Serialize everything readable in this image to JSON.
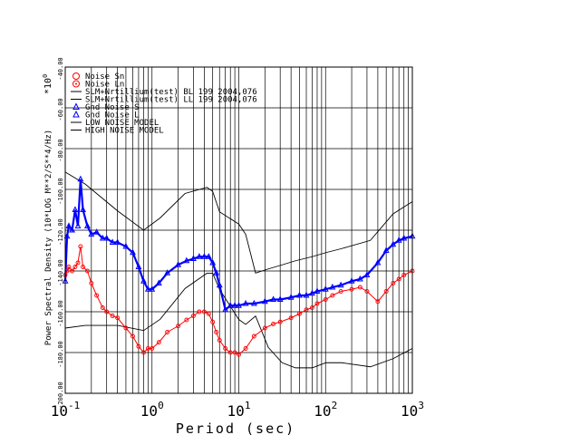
{
  "chart_data": {
    "type": "scatter",
    "xlabel": "Period (sec)",
    "ylabel": "Power Spectral Density (10*LOG M**2/S**4/Hz)",
    "y_multiplier": "*10",
    "y_multiplier_exp": "0",
    "xscale": "log",
    "xlim": [
      0.1,
      1000
    ],
    "ylim": [
      -200,
      -40
    ],
    "grid": true,
    "legend_position": "top-left",
    "x_ticks": [
      {
        "base": "10",
        "exp": "-1",
        "value": 0.1
      },
      {
        "base": "10",
        "exp": "0",
        "value": 1
      },
      {
        "base": "10",
        "exp": "1",
        "value": 10
      },
      {
        "base": "10",
        "exp": "2",
        "value": 100
      },
      {
        "base": "10",
        "exp": "3",
        "value": 1000
      }
    ],
    "y_ticks": [
      {
        "label": "-200.00",
        "value": -200
      },
      {
        "label": "-180.00",
        "value": -180
      },
      {
        "label": "-160.00",
        "value": -160
      },
      {
        "label": "-140.00",
        "value": -140
      },
      {
        "label": "-120.00",
        "value": -120
      },
      {
        "label": "-100.00",
        "value": -100
      },
      {
        "label": "-80.00",
        "value": -80
      },
      {
        "label": "-60.00",
        "value": -60
      },
      {
        "label": "-40.00",
        "value": -40
      }
    ],
    "legend": [
      {
        "symbol": "circle",
        "color": "#ff0000",
        "label": "Noise Sn"
      },
      {
        "symbol": "circle-dot",
        "color": "#ff0000",
        "label": "Noise Ln"
      },
      {
        "symbol": "line",
        "color": "#000000",
        "label": "SLM+Nrtillium(test) BL 199 2004,076"
      },
      {
        "symbol": "line",
        "color": "#000000",
        "label": "SLM+Nrtillium(test) LL 199 2004,076"
      },
      {
        "symbol": "triangle",
        "color": "#0000ff",
        "label": "Gnd Noise S"
      },
      {
        "symbol": "triangle",
        "color": "#0000ff",
        "label": "Gnd Noise L"
      },
      {
        "symbol": "line",
        "color": "#000000",
        "label": "LOW NOISE MODEL"
      },
      {
        "symbol": "line",
        "color": "#000000",
        "label": "HIGH NOISE MODEL"
      }
    ],
    "series": [
      {
        "name": "Gnd Noise S",
        "color": "#0000ff",
        "marker": "triangle",
        "x": [
          0.1,
          0.105,
          0.11,
          0.12,
          0.13,
          0.14,
          0.15,
          0.16,
          0.18,
          0.2,
          0.23,
          0.27,
          0.3,
          0.35,
          0.4,
          0.5,
          0.6,
          0.7,
          0.8,
          0.9,
          1.0,
          1.2,
          1.5,
          2.0,
          2.5,
          3.0,
          3.5,
          4.0,
          4.5,
          5.0,
          5.5,
          6.0,
          7.0,
          8.0,
          9.0,
          10,
          12,
          15,
          20,
          25,
          30,
          40,
          50,
          60,
          70,
          80,
          100,
          120,
          150,
          200,
          250,
          300,
          400,
          500,
          600,
          700,
          800,
          1000
        ],
        "y": [
          -145,
          -123,
          -118,
          -120,
          -110,
          -118,
          -95,
          -110,
          -118,
          -122,
          -121,
          -124,
          -124,
          -126,
          -126,
          -128,
          -131,
          -138,
          -145,
          -149,
          -149,
          -146,
          -141,
          -137,
          -135,
          -134,
          -133,
          -133,
          -133,
          -136,
          -141,
          -147,
          -159,
          -157,
          -157,
          -157,
          -156,
          -156,
          -155,
          -154,
          -154,
          -153,
          -152,
          -152,
          -151,
          -150,
          -149,
          -148,
          -147,
          -145,
          -144,
          -142,
          -136,
          -130,
          -127,
          -125,
          -124,
          -123
        ]
      },
      {
        "name": "Noise Sn",
        "color": "#ff0000",
        "marker": "circle",
        "x": [
          0.1,
          0.105,
          0.11,
          0.12,
          0.13,
          0.14,
          0.15,
          0.16,
          0.18,
          0.2,
          0.23,
          0.27,
          0.3,
          0.35,
          0.4,
          0.5,
          0.6,
          0.7,
          0.8,
          0.9,
          1.0,
          1.2,
          1.5,
          2.0,
          2.5,
          3.0,
          3.5,
          4.0,
          4.5,
          5.0,
          5.5,
          6.0,
          7.0,
          8.0,
          9.0,
          10,
          12,
          15,
          20,
          25,
          30,
          40,
          50,
          60,
          70,
          80,
          100,
          120,
          150,
          200,
          250,
          300,
          400,
          500,
          600,
          700,
          800,
          1000
        ],
        "y": [
          -142,
          -140,
          -138,
          -140,
          -138,
          -136,
          -128,
          -138,
          -140,
          -146,
          -152,
          -158,
          -160,
          -162,
          -163,
          -168,
          -172,
          -177,
          -180,
          -178,
          -178,
          -175,
          -170,
          -167,
          -164,
          -162,
          -160,
          -160,
          -161,
          -165,
          -170,
          -174,
          -178,
          -180,
          -180,
          -181,
          -178,
          -172,
          -168,
          -166,
          -165,
          -163,
          -161,
          -159,
          -158,
          -156,
          -154,
          -152,
          -150,
          -149,
          -148,
          -150,
          -155,
          -150,
          -146,
          -144,
          -142,
          -140
        ]
      },
      {
        "name": "HIGH NOISE MODEL",
        "color": "#000000",
        "marker": "line",
        "x": [
          0.1,
          0.17,
          0.4,
          0.8,
          1.24,
          2.4,
          4.3,
          5.0,
          6.0,
          10,
          12,
          15.6,
          21.9,
          31.6,
          45,
          70,
          101,
          154,
          328,
          600,
          1000
        ],
        "y": [
          -91.5,
          -97.4,
          -110.5,
          -120,
          -114,
          -102,
          -99,
          -101,
          -111,
          -117,
          -122,
          -141,
          -139,
          -137,
          -135,
          -133,
          -131,
          -129,
          -125,
          -112,
          -106
        ]
      },
      {
        "name": "LOW NOISE MODEL",
        "color": "#000000",
        "marker": "line",
        "x": [
          0.1,
          0.17,
          0.4,
          0.8,
          1.24,
          2.4,
          4.3,
          5.0,
          6.0,
          10,
          12,
          15.6,
          21.9,
          31.6,
          45,
          70,
          101,
          154,
          328,
          600,
          1000
        ],
        "y": [
          -168,
          -166.7,
          -166.7,
          -169.2,
          -163.7,
          -148.6,
          -141.1,
          -141.1,
          -149,
          -163.8,
          -166.2,
          -162.1,
          -177.5,
          -185,
          -187.5,
          -187.5,
          -185,
          -185,
          -187,
          -183,
          -178
        ]
      }
    ]
  }
}
